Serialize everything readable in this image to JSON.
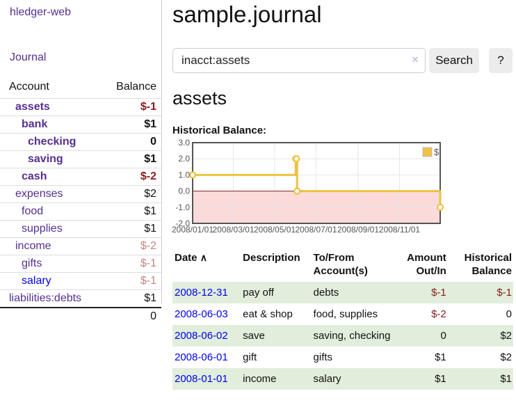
{
  "app": {
    "brand": "hledger-web"
  },
  "colors": {
    "link_visited_purple": "#552e91",
    "link_blue": "#0000ee",
    "negative_strong": "#8b1b1b",
    "negative_soft": "#c38384",
    "row_shade_green": "#e1eedc",
    "series_gold": "#EDC240"
  },
  "sidebar": {
    "journal_link": "Journal",
    "accounts_header": {
      "account": "Account",
      "balance": "Balance"
    },
    "accounts": [
      {
        "name": "assets",
        "cell_class": "ind1 bold",
        "link_class": "vis",
        "balance": "$-1",
        "balance_class": "negb"
      },
      {
        "name": "bank",
        "cell_class": "ind2 bold",
        "link_class": "vis",
        "balance": "$1",
        "balance_class": "boldv"
      },
      {
        "name": "checking",
        "cell_class": "ind3 bold",
        "link_class": "vis",
        "balance": "0",
        "balance_class": "boldv"
      },
      {
        "name": "saving",
        "cell_class": "ind3 bold",
        "link_class": "vis",
        "balance": "$1",
        "balance_class": "boldv"
      },
      {
        "name": "cash",
        "cell_class": "ind2 bold",
        "link_class": "vis",
        "balance": "$-2",
        "balance_class": "negb"
      },
      {
        "name": "expenses",
        "cell_class": "ind1",
        "link_class": "vis",
        "balance": "$2",
        "balance_class": ""
      },
      {
        "name": "food",
        "cell_class": "ind2",
        "link_class": "vis",
        "balance": "$1",
        "balance_class": ""
      },
      {
        "name": "supplies",
        "cell_class": "ind2",
        "link_class": "vis",
        "balance": "$1",
        "balance_class": ""
      },
      {
        "name": "income",
        "cell_class": "ind1",
        "link_class": "vis",
        "balance": "$-2",
        "balance_class": "negs"
      },
      {
        "name": "gifts",
        "cell_class": "ind2",
        "link_class": "vis",
        "balance": "$-1",
        "balance_class": "negs"
      },
      {
        "name": "salary",
        "cell_class": "ind2",
        "link_class": "unvis",
        "balance": "$-1",
        "balance_class": "negs"
      },
      {
        "name": "liabilities:debts",
        "cell_class": "ind0",
        "link_class": "vis",
        "balance": "$1",
        "balance_class": ""
      }
    ],
    "total": "0"
  },
  "header": {
    "title": "sample.journal"
  },
  "search": {
    "query": "inacct:assets",
    "clear_icon": "×",
    "button_label": "Search",
    "help_label": "?"
  },
  "account_page": {
    "heading": "assets",
    "chart_title": "Historical Balance:"
  },
  "chart_data": {
    "type": "line",
    "step": true,
    "title": "Historical Balance:",
    "x": [
      "2008-01-01",
      "2008-06-01",
      "2008-06-02",
      "2008-06-03",
      "2008-12-31"
    ],
    "series": [
      {
        "name": "$",
        "color": "#EDC240",
        "values": [
          1,
          2,
          2,
          0,
          -1
        ]
      }
    ],
    "xrange": [
      "2008-01-01",
      "2008-12-31"
    ],
    "ylim": [
      -2,
      3
    ],
    "yticks": [
      3,
      2,
      1,
      0,
      -1,
      -2
    ],
    "ytick_labels": [
      "3.0",
      "2.0",
      "1.0",
      "0.0",
      "-1.0",
      "-2.0"
    ],
    "xticks": [
      "2008-01-01",
      "2008-03-01",
      "2008-05-01",
      "2008-07-01",
      "2008-09-01",
      "2008-11-01"
    ],
    "xtick_labels": [
      "2008/01/01",
      "2008/03/01",
      "2008/05/01",
      "2008/07/01",
      "2008/09/01",
      "2008/11/01"
    ],
    "grid": true,
    "legend_position": "top-right",
    "colors": {
      "negative_region": "#fbdada",
      "zero_line": "#8d2020",
      "grid": "#e6e6e6",
      "border": "#545454",
      "tick_text": "#545454"
    }
  },
  "register": {
    "headers": {
      "date": "Date",
      "description": "Description",
      "account": "To/From Account(s)",
      "amount": "Amount Out/In",
      "balance": "Historical Balance"
    },
    "sort_indicator": "∧",
    "rows": [
      {
        "date": "2008-12-31",
        "description": "pay off",
        "accounts": "debts",
        "amount": "$-1",
        "amount_class": "rneg",
        "balance": "$-1",
        "balance_class": "rneg",
        "row_class": "shade"
      },
      {
        "date": "2008-06-03",
        "description": "eat & shop",
        "accounts": "food, supplies",
        "amount": "$-2",
        "amount_class": "rneg",
        "balance": "0",
        "balance_class": "",
        "row_class": ""
      },
      {
        "date": "2008-06-02",
        "description": "save",
        "accounts": "saving, checking",
        "amount": "0",
        "amount_class": "",
        "balance": "$2",
        "balance_class": "",
        "row_class": "shade"
      },
      {
        "date": "2008-06-01",
        "description": "gift",
        "accounts": "gifts",
        "amount": "$1",
        "amount_class": "",
        "balance": "$2",
        "balance_class": "",
        "row_class": ""
      },
      {
        "date": "2008-01-01",
        "description": "income",
        "accounts": "salary",
        "amount": "$1",
        "amount_class": "",
        "balance": "$1",
        "balance_class": "",
        "row_class": "shade"
      }
    ]
  }
}
